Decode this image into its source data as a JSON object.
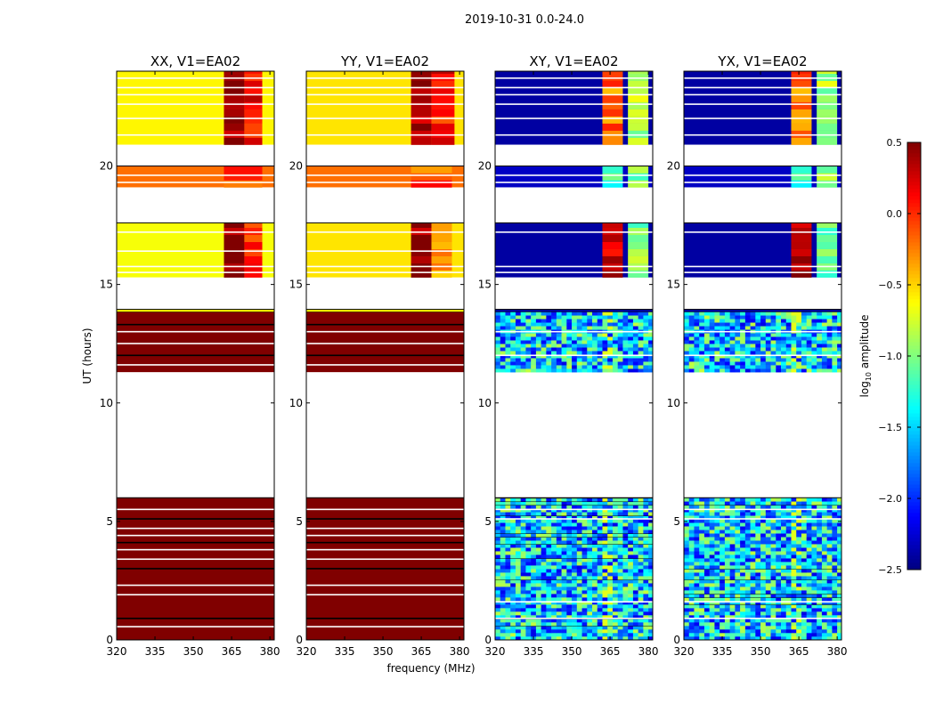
{
  "chart_data": {
    "type": "heatmap",
    "title": "2019-10-31 0.0-24.0",
    "xlabel": "frequency (MHz)",
    "ylabel": "UT (hours)",
    "xlim": [
      320,
      381.7
    ],
    "ylim": [
      0,
      24
    ],
    "xticks": [
      320,
      335,
      350,
      365,
      380
    ],
    "yticks": [
      0,
      5,
      10,
      15,
      20
    ],
    "colorbar": {
      "label": "log10 amplitude",
      "label_main": "log",
      "label_sub": "10",
      "label_rest": " amplitude",
      "range": [
        -2.5,
        0.5
      ],
      "ticks": [
        0.5,
        0.0,
        -0.5,
        -1.0,
        -1.5,
        -2.0,
        -2.5
      ],
      "tick_labels": [
        "0.5",
        "0.0",
        "−0.5",
        "−1.0",
        "−1.5",
        "−2.0",
        "−2.5"
      ],
      "colormap": "jet"
    },
    "panels": [
      {
        "title": "XX, V1=EA02",
        "kind": "parallel",
        "bands": [
          {
            "t": [
              0,
              6.0
            ],
            "value": 0.5,
            "gaps": [
              0.55,
              0.9,
              1.9,
              2.3,
              3.0,
              3.4,
              3.8,
              4.1,
              4.4,
              4.7,
              5.1,
              5.5
            ]
          },
          {
            "t": [
              11.3,
              13.85
            ],
            "value": 0.5,
            "gaps": [
              11.6,
              12.0,
              12.5,
              13.0,
              13.3
            ]
          },
          {
            "t": [
              13.85,
              13.95
            ],
            "value": -0.6,
            "gaps": []
          },
          {
            "t": [
              15.3,
              17.6
            ],
            "value": -0.65,
            "gaps": [
              15.5,
              15.75,
              16.4,
              17.2
            ],
            "hot": [
              [
                362,
                370,
                0.45
              ],
              [
                370,
                377,
                0.0
              ]
            ]
          },
          {
            "t": [
              19.1,
              20.0
            ],
            "value": -0.2,
            "gaps": [
              19.3,
              19.6
            ],
            "hot": [
              [
                362,
                377,
                -0.1
              ]
            ]
          },
          {
            "t": [
              20.9,
              24.0
            ],
            "value": -0.6,
            "gaps": [
              21.3,
              22.0,
              22.6,
              23.0,
              23.3,
              23.7
            ],
            "hot": [
              [
                362,
                370,
                0.45
              ],
              [
                370,
                377,
                0.1
              ]
            ]
          }
        ]
      },
      {
        "title": "YY, V1=EA02",
        "kind": "parallel",
        "bands": [
          {
            "t": [
              0,
              6.0
            ],
            "value": 0.5,
            "gaps": [
              0.55,
              0.9,
              1.9,
              2.3,
              3.0,
              3.4,
              3.8,
              4.1,
              4.4,
              4.7,
              5.1,
              5.5
            ]
          },
          {
            "t": [
              11.3,
              13.85
            ],
            "value": 0.5,
            "gaps": [
              11.6,
              12.0,
              12.5,
              13.0,
              13.3
            ]
          },
          {
            "t": [
              13.85,
              13.95
            ],
            "value": -0.6,
            "gaps": []
          },
          {
            "t": [
              15.3,
              17.6
            ],
            "value": -0.55,
            "gaps": [
              15.5,
              15.75,
              16.4,
              17.2
            ],
            "hot": [
              [
                361,
                369,
                0.45
              ],
              [
                369,
                377,
                -0.3
              ]
            ]
          },
          {
            "t": [
              19.1,
              20.0
            ],
            "value": -0.2,
            "gaps": [
              19.3,
              19.6
            ],
            "hot": [
              [
                361,
                377,
                -0.1
              ]
            ]
          },
          {
            "t": [
              20.9,
              24.0
            ],
            "value": -0.55,
            "gaps": [
              21.3,
              22.0,
              22.6,
              23.0,
              23.3,
              23.7
            ],
            "hot": [
              [
                361,
                369,
                0.45
              ],
              [
                369,
                378,
                0.1
              ]
            ]
          }
        ]
      },
      {
        "title": "XY, V1=EA02",
        "kind": "cross",
        "bands": [
          {
            "t": [
              0,
              6.0
            ],
            "noise": -1.5,
            "gaps": [
              0.9,
              1.6,
              5.1,
              5.5
            ]
          },
          {
            "t": [
              11.3,
              13.85
            ],
            "noise": -1.5,
            "gaps": [
              12.0,
              13.0
            ]
          },
          {
            "t": [
              13.85,
              13.95
            ],
            "value": -2.4,
            "gaps": []
          },
          {
            "t": [
              15.3,
              17.6
            ],
            "value": -2.4,
            "gaps": [
              15.5,
              15.75,
              17.2
            ],
            "hot": [
              [
                362,
                370,
                0.3
              ],
              [
                372,
                380,
                -1.0
              ]
            ]
          },
          {
            "t": [
              19.1,
              20.0
            ],
            "value": -2.3,
            "gaps": [
              19.3,
              19.6
            ],
            "hot": [
              [
                362,
                370,
                -1.2
              ],
              [
                372,
                380,
                -1.0
              ]
            ]
          },
          {
            "t": [
              20.9,
              24.0
            ],
            "value": -2.4,
            "gaps": [
              21.3,
              22.0,
              22.6,
              23.0,
              23.3,
              23.7
            ],
            "hot": [
              [
                362,
                370,
                -0.2
              ],
              [
                372,
                380,
                -0.9
              ]
            ]
          }
        ]
      },
      {
        "title": "YX, V1=EA02",
        "kind": "cross",
        "bands": [
          {
            "t": [
              0,
              6.0
            ],
            "noise": -1.5,
            "gaps": [
              0.9,
              1.6,
              5.1,
              5.5
            ]
          },
          {
            "t": [
              11.3,
              13.85
            ],
            "noise": -1.5,
            "gaps": [
              12.0,
              13.0
            ]
          },
          {
            "t": [
              13.85,
              13.95
            ],
            "value": -2.4,
            "gaps": []
          },
          {
            "t": [
              15.3,
              17.6
            ],
            "value": -2.4,
            "gaps": [
              15.5,
              15.75,
              17.2
            ],
            "hot": [
              [
                362,
                370,
                0.3
              ],
              [
                372,
                380,
                -1.0
              ]
            ]
          },
          {
            "t": [
              19.1,
              20.0
            ],
            "value": -2.3,
            "gaps": [
              19.3,
              19.6
            ],
            "hot": [
              [
                362,
                370,
                -1.2
              ],
              [
                372,
                380,
                -1.0
              ]
            ]
          },
          {
            "t": [
              20.9,
              24.0
            ],
            "value": -2.4,
            "gaps": [
              21.3,
              22.0,
              22.6,
              23.0,
              23.3,
              23.7
            ],
            "hot": [
              [
                362,
                370,
                -0.2
              ],
              [
                372,
                380,
                -0.9
              ]
            ]
          }
        ]
      }
    ]
  }
}
